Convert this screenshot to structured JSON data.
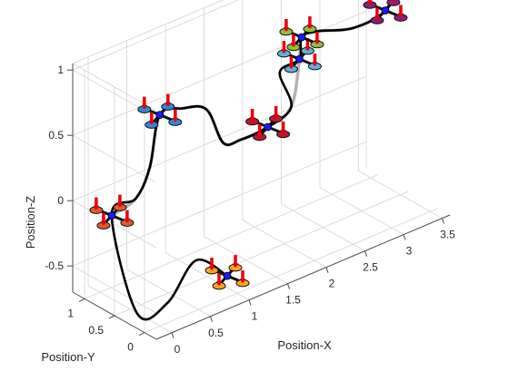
{
  "chart_data": {
    "type": "line-3d",
    "xlabel": "Position-X",
    "ylabel": "Position-Y",
    "zlabel": "Position-Z",
    "xlim": [
      -0.2,
      3.6
    ],
    "ylim": [
      -0.2,
      1.2
    ],
    "zlim": [
      -0.7,
      1.05
    ],
    "x_ticks": [
      "0",
      "0.5",
      "1",
      "1.5",
      "2",
      "2.5",
      "3",
      "3.5"
    ],
    "y_ticks": [
      "0",
      "0.5",
      "1"
    ],
    "z_ticks": [
      "-0.5",
      "0",
      "0.5",
      "1"
    ],
    "grid": true,
    "series": [
      {
        "style": "reference",
        "color": "#a6a6a6",
        "points": [
          [
            0.15,
            1.0,
            -0.15
          ],
          [
            0.5,
            1.05,
            -0.12
          ],
          [
            0.72,
            1.1,
            0.05
          ],
          [
            0.85,
            1.1,
            0.42
          ],
          [
            1.05,
            0.98,
            0.45
          ],
          [
            1.3,
            0.9,
            0.4
          ],
          [
            1.5,
            0.88,
            0.1
          ],
          [
            1.7,
            0.85,
            0.08
          ],
          [
            1.9,
            0.65,
            0.18
          ],
          [
            2.05,
            0.45,
            0.35
          ],
          [
            2.1,
            0.38,
            0.72
          ],
          [
            2.3,
            0.6,
            0.78
          ],
          [
            2.6,
            0.72,
            0.72
          ],
          [
            2.9,
            0.52,
            0.72
          ],
          [
            3.15,
            0.3,
            0.85
          ],
          [
            3.5,
            0.55,
            0.95
          ],
          [
            3.25,
            0.85,
            0.92
          ],
          [
            2.9,
            1.05,
            0.95
          ],
          [
            2.85,
            1.15,
            1.02
          ]
        ]
      },
      {
        "style": "flown",
        "color": "#000000",
        "points": [
          [
            0.95,
            0.1,
            -0.58
          ],
          [
            0.7,
            0.3,
            -0.45
          ],
          [
            0.45,
            0.45,
            -0.75
          ],
          [
            0.25,
            0.7,
            -0.85
          ],
          [
            0.15,
            1.0,
            -0.15
          ],
          [
            0.5,
            1.05,
            -0.12
          ],
          [
            0.72,
            1.1,
            0.05
          ],
          [
            0.85,
            1.1,
            0.42
          ],
          [
            1.05,
            0.98,
            0.45
          ],
          [
            1.3,
            0.9,
            0.4
          ],
          [
            1.5,
            0.88,
            0.1
          ],
          [
            1.7,
            0.85,
            0.08
          ],
          [
            1.9,
            0.65,
            0.18
          ],
          [
            2.05,
            0.45,
            0.35
          ],
          [
            1.9,
            0.45,
            0.65
          ],
          [
            2.1,
            0.38,
            0.72
          ],
          [
            2.3,
            0.6,
            0.78
          ],
          [
            2.6,
            0.72,
            0.72
          ],
          [
            2.9,
            0.52,
            0.72
          ],
          [
            3.15,
            0.3,
            0.85
          ],
          [
            3.5,
            0.55,
            0.95
          ],
          [
            3.25,
            0.85,
            0.92
          ],
          [
            2.9,
            1.05,
            0.95
          ],
          [
            2.85,
            1.15,
            1.02
          ],
          [
            3.05,
            1.2,
            1.05
          ]
        ]
      }
    ],
    "drones": [
      {
        "x": 0.95,
        "y": 0.1,
        "z": -0.58,
        "color": "#f5a623"
      },
      {
        "x": 0.15,
        "y": 1.0,
        "z": -0.15,
        "color": "#e05a2b"
      },
      {
        "x": 0.85,
        "y": 1.1,
        "z": 0.42,
        "color": "#2e88d8"
      },
      {
        "x": 1.9,
        "y": 0.65,
        "z": 0.18,
        "color": "#c0152f"
      },
      {
        "x": 2.1,
        "y": 0.38,
        "z": 0.72,
        "color": "#5ab2e0"
      },
      {
        "x": 2.3,
        "y": 0.6,
        "z": 0.78,
        "color": "#8fbf3a"
      },
      {
        "x": 3.15,
        "y": 0.3,
        "z": 0.85,
        "color": "#8b1e7a"
      },
      {
        "x": 3.5,
        "y": 0.55,
        "z": 0.95,
        "color": "#f0a020"
      },
      {
        "x": 2.9,
        "y": 1.05,
        "z": 0.95,
        "color": "#e07820"
      },
      {
        "x": 3.05,
        "y": 1.2,
        "z": 1.05,
        "color": "#2a8fe0"
      }
    ]
  }
}
